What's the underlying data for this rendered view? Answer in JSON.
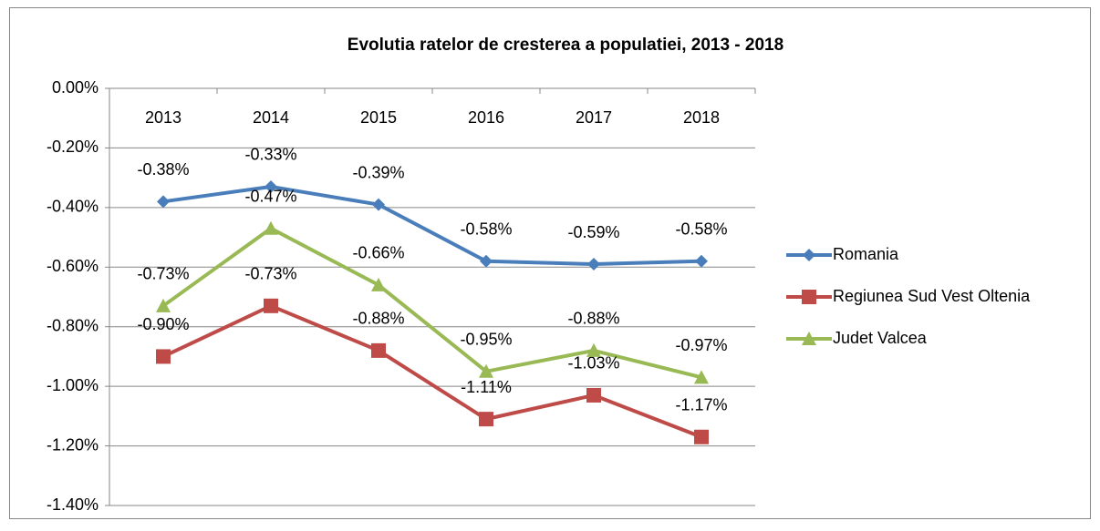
{
  "chart_data": {
    "type": "line",
    "title": "Evolutia ratelor de cresterea a populatiei, 2013 - 2018",
    "categories": [
      "2013",
      "2014",
      "2015",
      "2016",
      "2017",
      "2018"
    ],
    "series": [
      {
        "name": "Romania",
        "color": "#4a7ebb",
        "marker": "diamond",
        "values": [
          -0.38,
          -0.33,
          -0.39,
          -0.58,
          -0.59,
          -0.58
        ],
        "value_labels": [
          "-0.38%",
          "-0.33%",
          "-0.39%",
          "-0.58%",
          "-0.59%",
          "-0.58%"
        ]
      },
      {
        "name": "Regiunea Sud Vest Oltenia",
        "color": "#be4b48",
        "marker": "square",
        "values": [
          -0.9,
          -0.73,
          -0.88,
          -1.11,
          -1.03,
          -1.17
        ],
        "value_labels": [
          "-0.90%",
          "-0.73%",
          "-0.88%",
          "-1.11%",
          "-1.03%",
          "-1.17%"
        ]
      },
      {
        "name": "Judet Valcea",
        "color": "#98b954",
        "marker": "triangle",
        "values": [
          -0.73,
          -0.47,
          -0.66,
          -0.95,
          -0.88,
          -0.97
        ],
        "value_labels": [
          "-0.73%",
          "-0.47%",
          "-0.66%",
          "-0.95%",
          "-0.88%",
          "-0.97%"
        ]
      }
    ],
    "ylim": [
      -1.4,
      0
    ],
    "yticks": [
      {
        "value": 0,
        "label": "0.00%"
      },
      {
        "value": -0.2,
        "label": "-0.20%"
      },
      {
        "value": -0.4,
        "label": "-0.40%"
      },
      {
        "value": -0.6,
        "label": "-0.60%"
      },
      {
        "value": -0.8,
        "label": "-0.80%"
      },
      {
        "value": -1.0,
        "label": "-1.00%"
      },
      {
        "value": -1.2,
        "label": "-1.20%"
      },
      {
        "value": -1.4,
        "label": "-1.40%"
      }
    ],
    "grid": true,
    "legend": "right"
  }
}
